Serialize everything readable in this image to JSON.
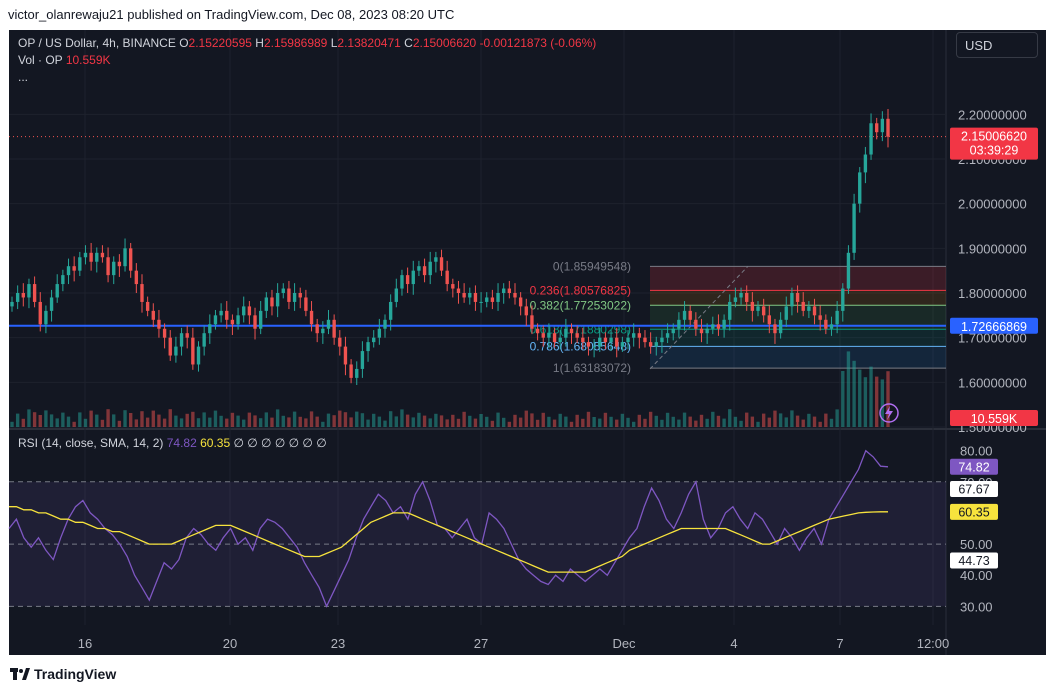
{
  "header": {
    "published": "victor_olanrewaju21 published on TradingView.com, Dec 08, 2023 08:20 UTC"
  },
  "legend": {
    "symbol": "OP / US Dollar, 4h, BINANCE",
    "o_label": "O",
    "o_value": "2.15220595",
    "h_label": "H",
    "h_value": "2.15986989",
    "l_label": "L",
    "l_value": "2.13820471",
    "c_label": "C",
    "c_value": "2.15006620",
    "change": "-0.00121873 (-0.06%)",
    "vol_label": "Vol · OP",
    "vol_value": "10.559K",
    "more": "..."
  },
  "currency_button": "USD",
  "rsi_legend": {
    "name": "RSI (14, close, SMA, 14, 2)",
    "rsi": "74.82",
    "sma": "60.35",
    "extras": "∅ ∅ ∅ ∅ ∅ ∅ ∅"
  },
  "footer": {
    "brand": "TradingView"
  },
  "colors": {
    "up": "#26a69a",
    "down": "#ef5350",
    "rsi": "#7e57c2",
    "sma": "#f7e33d",
    "hline": "#2962ff",
    "bg": "#131722",
    "text": "#b2b5be"
  },
  "chart_data": [
    {
      "type": "candlestick",
      "title": "OP / US Dollar, 4h, BINANCE",
      "x_ticks": [
        "16",
        "20",
        "23",
        "27",
        "Dec",
        "4",
        "7",
        "12:00"
      ],
      "y_ticks": [
        "2.20000000",
        "2.10000000",
        "2.00000000",
        "1.90000000",
        "1.80000000",
        "1.70000000",
        "1.60000000",
        "1.50000000"
      ],
      "ylim": [
        1.5,
        2.2
      ],
      "price_tags": {
        "last": "2.15006620",
        "countdown": "03:39:29",
        "horizontal_line": "1.72666869",
        "volume": "10.559K"
      },
      "horizontal_line_value": 1.72666869,
      "last_value": 2.1500662,
      "fibonacci": [
        {
          "level": "0",
          "label": "0(1.85949548)",
          "value": 1.85949548
        },
        {
          "level": "0.236",
          "label": "0.236(1.80576825)",
          "value": 1.80576825
        },
        {
          "level": "0.382",
          "label": "0.382(1.77253022)",
          "value": 1.77253022
        },
        {
          "level": "0.618",
          "label": "0.618(1.71880298)",
          "value": 1.71880298
        },
        {
          "level": "0.786",
          "label": "0.786(1.68055648)",
          "value": 1.68055648
        },
        {
          "level": "1",
          "label": "1(1.63183072)",
          "value": 1.63183072
        }
      ],
      "close": [
        1.78,
        1.8,
        1.79,
        1.82,
        1.78,
        1.73,
        1.76,
        1.79,
        1.82,
        1.84,
        1.86,
        1.85,
        1.88,
        1.89,
        1.87,
        1.89,
        1.88,
        1.84,
        1.87,
        1.86,
        1.9,
        1.85,
        1.82,
        1.78,
        1.76,
        1.74,
        1.72,
        1.7,
        1.66,
        1.68,
        1.71,
        1.7,
        1.64,
        1.68,
        1.71,
        1.73,
        1.75,
        1.76,
        1.74,
        1.73,
        1.75,
        1.77,
        1.75,
        1.72,
        1.76,
        1.79,
        1.77,
        1.8,
        1.81,
        1.78,
        1.8,
        1.79,
        1.76,
        1.73,
        1.71,
        1.72,
        1.74,
        1.7,
        1.68,
        1.64,
        1.61,
        1.63,
        1.67,
        1.69,
        1.7,
        1.72,
        1.74,
        1.78,
        1.81,
        1.84,
        1.82,
        1.85,
        1.86,
        1.84,
        1.87,
        1.88,
        1.85,
        1.82,
        1.81,
        1.8,
        1.79,
        1.8,
        1.78,
        1.78,
        1.79,
        1.78,
        1.8,
        1.81,
        1.8,
        1.79,
        1.77,
        1.75,
        1.72,
        1.71,
        1.7,
        1.71,
        1.69,
        1.7,
        1.72,
        1.71,
        1.7,
        1.69,
        1.68,
        1.68,
        1.7,
        1.69,
        1.7,
        1.68,
        1.69,
        1.7,
        1.71,
        1.7,
        1.69,
        1.68,
        1.69,
        1.7,
        1.71,
        1.72,
        1.74,
        1.76,
        1.74,
        1.72,
        1.71,
        1.72,
        1.73,
        1.72,
        1.74,
        1.78,
        1.79,
        1.8,
        1.78,
        1.76,
        1.77,
        1.75,
        1.73,
        1.71,
        1.74,
        1.77,
        1.8,
        1.78,
        1.76,
        1.77,
        1.75,
        1.74,
        1.72,
        1.73,
        1.76,
        1.81,
        1.89,
        2.0,
        2.07,
        2.11,
        2.18,
        2.16,
        2.19,
        2.15
      ],
      "rsi": [
        55,
        58,
        52,
        49,
        52,
        48,
        45,
        52,
        58,
        62,
        64,
        60,
        58,
        55,
        53,
        50,
        46,
        40,
        36,
        32,
        38,
        44,
        42,
        45,
        52,
        55,
        53,
        50,
        48,
        52,
        55,
        50,
        52,
        48,
        55,
        58,
        57,
        55,
        52,
        49,
        44,
        40,
        36,
        30,
        35,
        40,
        45,
        52,
        58,
        62,
        66,
        64,
        60,
        62,
        58,
        66,
        70,
        64,
        56,
        55,
        52,
        55,
        58,
        52,
        50,
        60,
        58,
        55,
        50,
        45,
        42,
        40,
        38,
        37,
        40,
        38,
        42,
        40,
        38,
        40,
        42,
        40,
        44,
        48,
        52,
        55,
        62,
        68,
        64,
        58,
        55,
        60,
        66,
        70,
        58,
        52,
        55,
        60,
        62,
        58,
        55,
        60,
        58,
        54,
        50,
        55,
        52,
        48,
        52,
        55,
        50,
        58,
        62,
        66,
        70,
        74,
        80,
        78,
        75,
        74.82
      ],
      "rsi_sma": [
        62,
        62,
        61,
        61,
        60,
        60,
        59,
        58,
        58,
        57,
        57,
        56,
        55,
        55,
        54,
        54,
        53,
        52,
        51,
        50,
        50,
        50,
        50,
        51,
        52,
        53,
        54,
        55,
        56,
        56,
        56,
        55,
        54,
        53,
        52,
        51,
        50,
        49,
        48,
        47,
        46,
        46,
        46,
        47,
        48,
        49,
        51,
        53,
        55,
        57,
        58,
        59,
        60,
        60,
        60,
        59,
        58,
        57,
        56,
        55,
        54,
        53,
        52,
        51,
        50,
        49,
        48,
        47,
        46,
        45,
        44,
        43,
        42,
        41,
        41,
        41,
        41,
        41,
        41,
        42,
        43,
        44,
        45,
        46,
        48,
        49,
        50,
        51,
        52,
        53,
        54,
        55,
        55,
        55,
        55,
        55,
        55,
        55,
        54,
        53,
        52,
        51,
        50,
        50,
        51,
        52,
        53,
        54,
        55,
        56,
        57,
        58,
        58.5,
        59,
        59.5,
        60,
        60.2,
        60.3,
        60.35,
        60.35
      ],
      "rsi_levels": [
        70,
        50,
        30
      ],
      "rsi_ticks": [
        "80.00",
        "70.00",
        "50.00",
        "40.00",
        "30.00"
      ],
      "rsi_tags": {
        "rsi": "74.82",
        "upper": "67.67",
        "sma": "60.35",
        "lower": "44.73"
      }
    }
  ]
}
